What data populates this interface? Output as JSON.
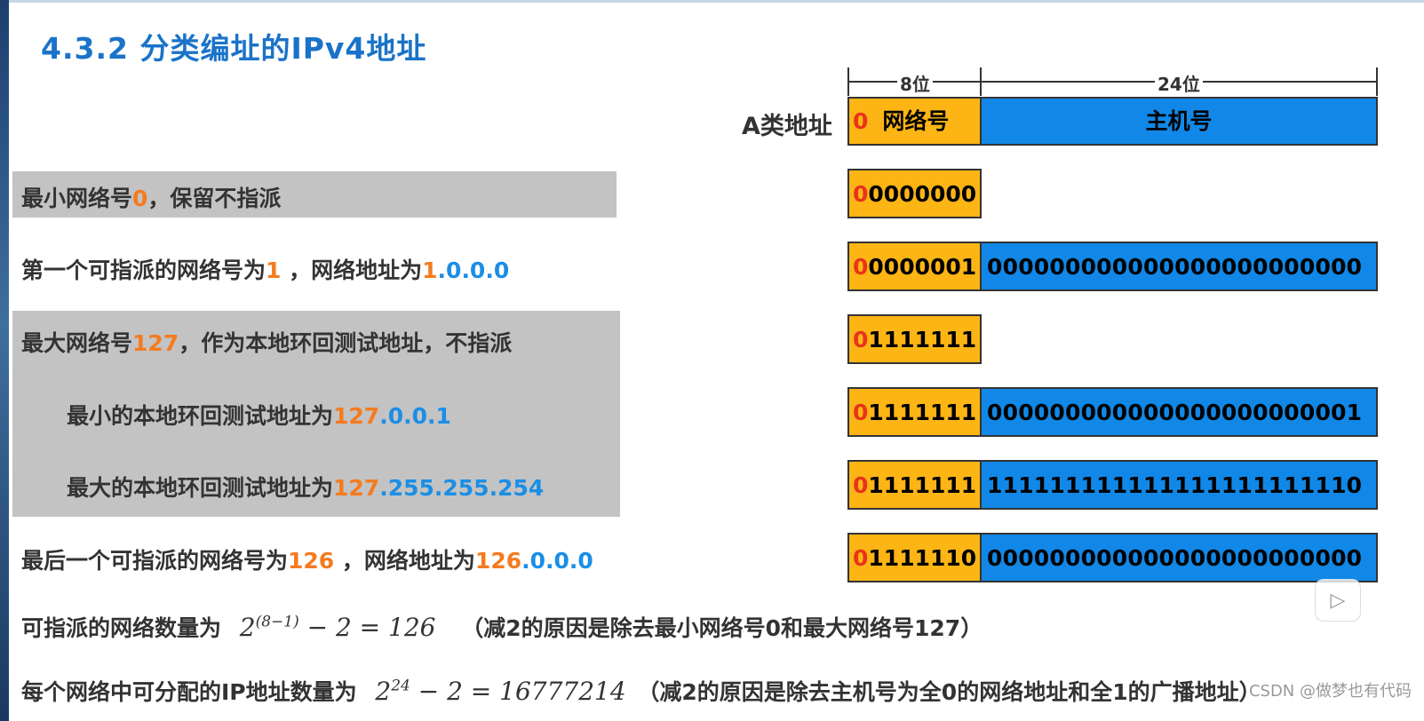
{
  "title": "4.3.2 分类编址的IPv4地址",
  "diagram": {
    "class_label": "A类地址",
    "dim_net": "8位",
    "dim_host": "24位",
    "net_label_zero": "0",
    "net_label": "网络号",
    "host_label": "主机号",
    "rows": [
      {
        "lead": "0",
        "net_rest": "0000000",
        "host": ""
      },
      {
        "lead": "0",
        "net_rest": "0000001",
        "host": "000000000000000000000000"
      },
      {
        "lead": "0",
        "net_rest": "1111111",
        "host": ""
      },
      {
        "lead": "0",
        "net_rest": "1111111",
        "host": "000000000000000000000001"
      },
      {
        "lead": "0",
        "net_rest": "1111111",
        "host": "111111111111111111111110"
      },
      {
        "lead": "0",
        "net_rest": "1111110",
        "host": "000000000000000000000000"
      }
    ]
  },
  "lines": {
    "l1_a": "最小网络号",
    "l1_b": "0",
    "l1_c": "，保留不指派",
    "l2_a": "第一个可指派的网络号为",
    "l2_b": "1",
    "l2_c": " ，网络地址为",
    "l2_d": "1",
    "l2_e": ".0.0.0",
    "l3_a": "最大网络号",
    "l3_b": "127",
    "l3_c": "，作为本地环回测试地址，不指派",
    "l4_a": "最小的本地环回测试地址为",
    "l4_b": "127",
    "l4_c": ".0.0.1",
    "l5_a": "最大的本地环回测试地址为",
    "l5_b": "127",
    "l5_c": ".255.255.254",
    "l6_a": "最后一个可指派的网络号为",
    "l6_b": "126",
    "l6_c": " ，网络地址为",
    "l6_d": "126",
    "l6_e": ".0.0.0",
    "l7_a": "可指派的网络数量为",
    "l7_base": "2",
    "l7_exp": "(8−1)",
    "l7_rest": "− 2 = 126",
    "l7_note": "（减2的原因是除去最小网络号0和最大网络号127）",
    "l8_a": "每个网络中可分配的IP地址数量为",
    "l8_base": "2",
    "l8_exp": "24",
    "l8_rest": "− 2 = 16777214",
    "l8_note": "（减2的原因是除去主机号为全0的网络地址和全1的广播地址）"
  },
  "watermark": "CSDN @做梦也有代码",
  "icons": {
    "play": "play-icon"
  }
}
